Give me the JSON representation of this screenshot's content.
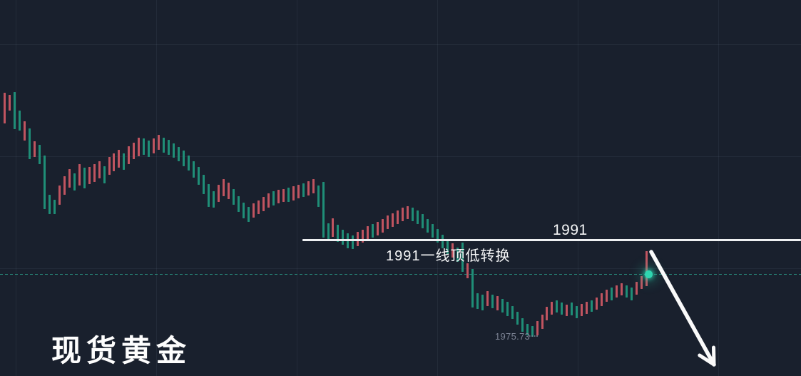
{
  "chart": {
    "title": "现货黄金",
    "annotations": {
      "level_label": "1991",
      "note_label": "1991一线顶低转换",
      "low_label": "1975.73"
    },
    "colors": {
      "background": "#19202d",
      "bull": "#c05460",
      "bear": "#1f8e77",
      "level_line": "#eef0f2",
      "price_line": "#2b9d89",
      "glow": "#2fd6b0",
      "text": "#f5f6f7",
      "low_label_color": "#7d8495",
      "arrow": "#fafafa"
    }
  },
  "chart_data": {
    "type": "bar",
    "subtype": "candlestick-range-bars",
    "instrument": "现货黄金 (Spot Gold)",
    "grid": "on",
    "price_axis": {
      "visible_range_approx": [
        1973.5,
        2016.5
      ],
      "low_price_marked": 1975.73
    },
    "levels": [
      {
        "value": 1991,
        "label": "1991",
        "style": "solid-white",
        "note": "resistance / 顶低转换 line"
      },
      {
        "value": 1985.6,
        "label": "",
        "style": "dashed-teal",
        "note": "current price line with glow marker"
      }
    ],
    "bars_format": [
      "high_price",
      "low_price",
      "direction 1=up(red) 0=down(teal)"
    ],
    "bars": [
      [
        2014.1,
        2009.3,
        1
      ],
      [
        2013.8,
        2011.3,
        1
      ],
      [
        2014.2,
        2008.4,
        0
      ],
      [
        2011.3,
        2008.2,
        0
      ],
      [
        2009.6,
        2006.6,
        1
      ],
      [
        2008.5,
        2003.7,
        0
      ],
      [
        2006.5,
        2004.0,
        1
      ],
      [
        2005.9,
        2002.9,
        0
      ],
      [
        2004.3,
        1995.8,
        0
      ],
      [
        1998.1,
        1995.0,
        0
      ],
      [
        1997.3,
        1995.0,
        0
      ],
      [
        1999.5,
        1996.5,
        1
      ],
      [
        2001.0,
        1998.1,
        1
      ],
      [
        2002.1,
        1999.2,
        1
      ],
      [
        2001.4,
        1998.8,
        0
      ],
      [
        2002.9,
        1999.5,
        1
      ],
      [
        2002.3,
        1999.1,
        0
      ],
      [
        2002.5,
        1999.8,
        1
      ],
      [
        2002.9,
        2000.1,
        1
      ],
      [
        2003.4,
        2000.7,
        1
      ],
      [
        2002.6,
        1999.9,
        0
      ],
      [
        2004.0,
        2001.2,
        1
      ],
      [
        2004.6,
        2001.8,
        1
      ],
      [
        2005.1,
        2002.3,
        1
      ],
      [
        2004.6,
        2002.0,
        0
      ],
      [
        2005.7,
        2002.9,
        1
      ],
      [
        2006.3,
        2003.7,
        1
      ],
      [
        2007.1,
        2004.1,
        1
      ],
      [
        2006.9,
        2004.4,
        0
      ],
      [
        2006.6,
        2004.0,
        0
      ],
      [
        2006.9,
        2004.6,
        1
      ],
      [
        2007.5,
        2005.2,
        1
      ],
      [
        2007.1,
        2004.7,
        0
      ],
      [
        2006.7,
        2004.4,
        0
      ],
      [
        2006.2,
        2003.9,
        0
      ],
      [
        2005.6,
        2003.3,
        0
      ],
      [
        2005.0,
        2002.6,
        0
      ],
      [
        2004.3,
        2001.9,
        0
      ],
      [
        2003.4,
        2000.8,
        0
      ],
      [
        2002.4,
        1999.6,
        0
      ],
      [
        2001.2,
        1998.2,
        0
      ],
      [
        1999.8,
        1996.2,
        0
      ],
      [
        1998.6,
        1996.0,
        0
      ],
      [
        1999.7,
        1996.9,
        1
      ],
      [
        2000.5,
        1997.9,
        1
      ],
      [
        2000.0,
        1997.4,
        1
      ],
      [
        1999.0,
        1996.5,
        0
      ],
      [
        1997.9,
        1995.4,
        0
      ],
      [
        1996.8,
        1994.4,
        0
      ],
      [
        1996.2,
        1993.8,
        0
      ],
      [
        1996.7,
        1994.5,
        1
      ],
      [
        1997.2,
        1995.0,
        1
      ],
      [
        1997.7,
        1995.5,
        1
      ],
      [
        1998.3,
        1996.1,
        1
      ],
      [
        1998.6,
        1996.4,
        0
      ],
      [
        1998.9,
        1996.7,
        1
      ],
      [
        1999.0,
        1996.9,
        1
      ],
      [
        1999.2,
        1997.0,
        0
      ],
      [
        1999.4,
        1997.2,
        1
      ],
      [
        1999.7,
        1997.5,
        1
      ],
      [
        1999.9,
        1997.7,
        0
      ],
      [
        2000.2,
        1998.0,
        1
      ],
      [
        2000.6,
        1998.3,
        1
      ],
      [
        1999.5,
        1996.2,
        0
      ],
      [
        2000.1,
        1991.3,
        0
      ],
      [
        1993.6,
        1990.8,
        0
      ],
      [
        1994.4,
        1991.5,
        1
      ],
      [
        1993.4,
        1990.7,
        0
      ],
      [
        1992.6,
        1990.2,
        0
      ],
      [
        1992.0,
        1989.7,
        0
      ],
      [
        1991.7,
        1989.5,
        0
      ],
      [
        1992.2,
        1990.0,
        1
      ],
      [
        1992.6,
        1990.5,
        1
      ],
      [
        1993.1,
        1991.0,
        1
      ],
      [
        1993.5,
        1991.3,
        0
      ],
      [
        1993.8,
        1991.7,
        1
      ],
      [
        1994.3,
        1992.1,
        1
      ],
      [
        1994.8,
        1992.7,
        1
      ],
      [
        1995.2,
        1993.0,
        1
      ],
      [
        1995.6,
        1993.5,
        1
      ],
      [
        1996.1,
        1993.9,
        1
      ],
      [
        1996.3,
        1994.2,
        1
      ],
      [
        1996.1,
        1993.9,
        0
      ],
      [
        1995.6,
        1993.5,
        0
      ],
      [
        1995.0,
        1992.8,
        0
      ],
      [
        1994.3,
        1992.1,
        0
      ],
      [
        1993.5,
        1991.3,
        0
      ],
      [
        1992.7,
        1990.5,
        0
      ],
      [
        1991.8,
        1989.6,
        0
      ],
      [
        1991.0,
        1988.8,
        0
      ],
      [
        1990.4,
        1988.2,
        1
      ],
      [
        1989.8,
        1987.5,
        0
      ],
      [
        1990.6,
        1986.0,
        0
      ],
      [
        1987.3,
        1984.9,
        1
      ],
      [
        1986.4,
        1980.3,
        0
      ],
      [
        1982.6,
        1980.1,
        0
      ],
      [
        1982.3,
        1979.9,
        0
      ],
      [
        1982.9,
        1980.6,
        1
      ],
      [
        1982.4,
        1980.2,
        0
      ],
      [
        1982.1,
        1979.9,
        1
      ],
      [
        1981.7,
        1979.6,
        0
      ],
      [
        1981.2,
        1979.0,
        0
      ],
      [
        1980.6,
        1978.5,
        0
      ],
      [
        1979.7,
        1977.6,
        0
      ],
      [
        1978.6,
        1976.5,
        0
      ],
      [
        1977.8,
        1976.0,
        0
      ],
      [
        1977.4,
        1975.7,
        0
      ],
      [
        1978.2,
        1976.0,
        1
      ],
      [
        1979.2,
        1977.0,
        1
      ],
      [
        1980.5,
        1978.3,
        1
      ],
      [
        1981.2,
        1979.2,
        1
      ],
      [
        1981.5,
        1979.6,
        0
      ],
      [
        1981.1,
        1979.2,
        0
      ],
      [
        1980.8,
        1979.0,
        1
      ],
      [
        1981.1,
        1979.1,
        0
      ],
      [
        1980.6,
        1978.7,
        0
      ],
      [
        1980.9,
        1979.0,
        1
      ],
      [
        1981.2,
        1979.3,
        1
      ],
      [
        1981.5,
        1979.7,
        0
      ],
      [
        1981.9,
        1980.0,
        1
      ],
      [
        1982.6,
        1980.6,
        1
      ],
      [
        1983.1,
        1981.2,
        1
      ],
      [
        1983.5,
        1981.5,
        0
      ],
      [
        1983.8,
        1981.9,
        1
      ],
      [
        1984.2,
        1982.2,
        1
      ],
      [
        1983.8,
        1981.9,
        0
      ],
      [
        1983.5,
        1981.5,
        0
      ],
      [
        1984.4,
        1982.3,
        1
      ],
      [
        1985.3,
        1983.2,
        1
      ],
      [
        1989.2,
        1983.7,
        1
      ]
    ]
  }
}
